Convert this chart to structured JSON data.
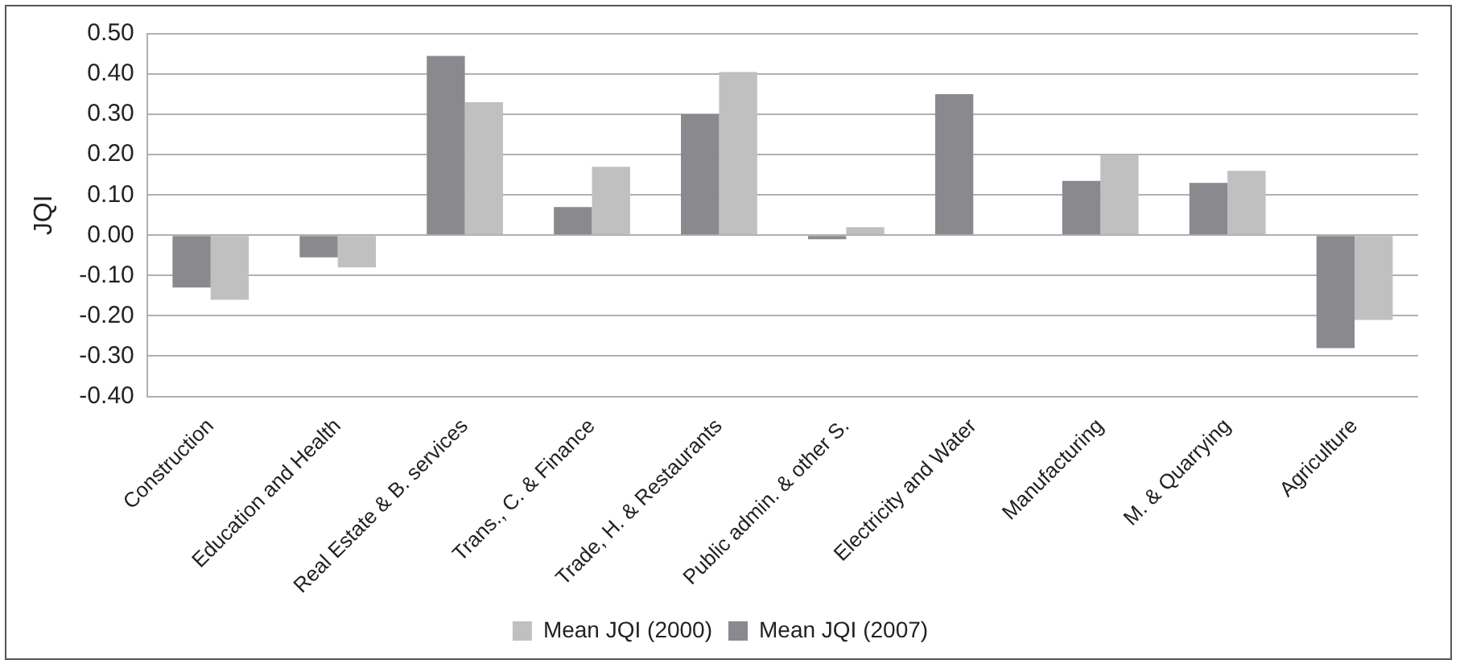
{
  "chart_data": {
    "type": "bar",
    "ylabel": "JQI",
    "categories": [
      "Construction",
      "Education and Health",
      "Real Estate & B. services",
      "Trans., C. & Finance",
      "Trade, H. & Restaurants",
      "Public admin. & other S.",
      "Electricity and Water",
      "Manufacturing",
      "M. & Quarrying",
      "Agriculture"
    ],
    "series": [
      {
        "name": "Mean JQI (2000)",
        "color": "#c0c0c0",
        "values": [
          -0.16,
          -0.08,
          0.33,
          0.17,
          0.405,
          0.02,
          null,
          0.2,
          0.16,
          -0.21
        ]
      },
      {
        "name": "Mean JQI (2007)",
        "color": "#8a8a8e",
        "values": [
          -0.13,
          -0.055,
          0.445,
          0.07,
          0.3,
          -0.01,
          0.35,
          0.135,
          0.13,
          -0.28
        ]
      }
    ],
    "ylim": [
      -0.4,
      0.5
    ],
    "yticks": [
      {
        "value": -0.4,
        "label": "-0.40"
      },
      {
        "value": -0.3,
        "label": "-0.30"
      },
      {
        "value": -0.2,
        "label": "-0.20"
      },
      {
        "value": -0.1,
        "label": "-0.10"
      },
      {
        "value": 0,
        "label": "0.00"
      },
      {
        "value": 0.1,
        "label": "0.10"
      },
      {
        "value": 0.2,
        "label": "0.20"
      },
      {
        "value": 0.3,
        "label": "0.30"
      },
      {
        "value": 0.4,
        "label": "0.40"
      },
      {
        "value": 0.5,
        "label": "0.50"
      }
    ],
    "grid": "y",
    "legend": "bottom"
  }
}
